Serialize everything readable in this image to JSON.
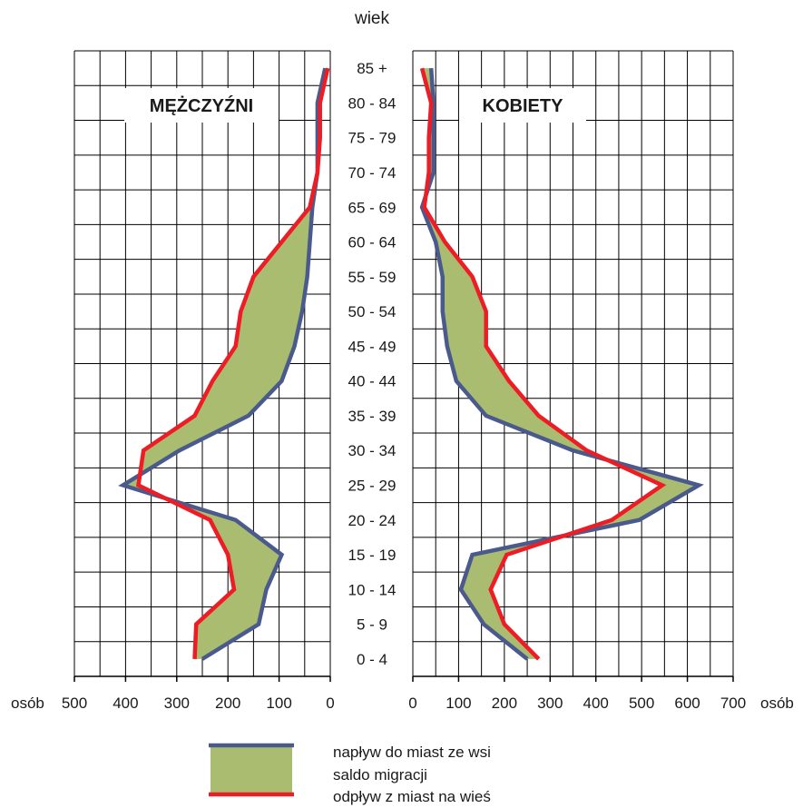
{
  "chart_data": {
    "type": "area",
    "center_title": "wiek",
    "age_groups": [
      "0 - 4",
      "5 - 9",
      "10 - 14",
      "15 - 19",
      "20 - 24",
      "25 - 29",
      "30 - 34",
      "35 - 39",
      "40 - 44",
      "45 - 49",
      "50 - 54",
      "55 - 59",
      "60 - 64",
      "65 - 69",
      "70 - 74",
      "75 - 79",
      "80 - 84",
      "85 +"
    ],
    "unit_left": "osób",
    "unit_right": "osób",
    "colors": {
      "inflow": "#4a5a8c",
      "outflow": "#ee1c24",
      "balance": "#a9bc70",
      "grid": "#000000"
    },
    "panels": [
      {
        "title": "MĘŻCZYŹNI",
        "xlim": [
          500,
          0
        ],
        "xticks": [
          "500",
          "400",
          "300",
          "200",
          "100",
          "0"
        ],
        "series": [
          {
            "name": "napływ do miast  ze wsi",
            "values": [
              250,
              140,
              125,
              95,
              185,
              405,
              295,
              160,
              95,
              70,
              55,
              45,
              40,
              35,
              25,
              25,
              25,
              10
            ]
          },
          {
            "name": "odpływ z miast na wieś",
            "values": [
              265,
              262,
              188,
              200,
              235,
              375,
              365,
              265,
              230,
              185,
              175,
              150,
              95,
              40,
              25,
              20,
              20,
              5
            ]
          }
        ]
      },
      {
        "title": "KOBIETY",
        "xlim": [
          0,
          700
        ],
        "xticks": [
          "0",
          "100",
          "200",
          "300",
          "400",
          "500",
          "600",
          "700"
        ],
        "series": [
          {
            "name": "napływ do miast  ze wsi",
            "values": [
              250,
              155,
              105,
              130,
              495,
              625,
              350,
              160,
              95,
              75,
              65,
              65,
              50,
              20,
              45,
              45,
              45,
              40
            ]
          },
          {
            "name": "odpływ z miast na wieś",
            "values": [
              275,
              200,
              170,
              205,
              435,
              545,
              380,
              275,
              210,
              160,
              160,
              130,
              70,
              25,
              35,
              35,
              40,
              20
            ]
          }
        ]
      }
    ],
    "legend": [
      {
        "label": "napływ do miast  ze wsi"
      },
      {
        "label": "saldo migracji"
      },
      {
        "label": "odpływ z miast na wieś"
      }
    ]
  }
}
